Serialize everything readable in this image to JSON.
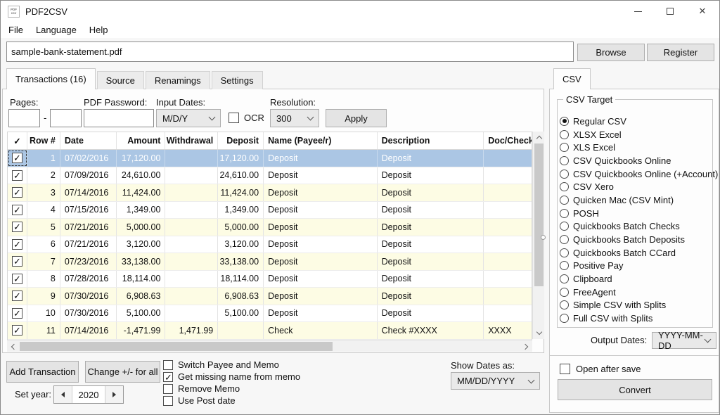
{
  "window": {
    "title": "PDF2CSV",
    "icon_top": "PDF",
    "icon_bottom": "csv"
  },
  "menu": {
    "items": [
      "File",
      "Language",
      "Help"
    ]
  },
  "file_bar": {
    "path": "sample-bank-statement.pdf",
    "browse_label": "Browse",
    "register_label": "Register"
  },
  "tabs": {
    "items": [
      "Transactions (16)",
      "Source",
      "Renamings",
      "Settings"
    ],
    "active": "Transactions (16)"
  },
  "toolbar": {
    "pages_label": "Pages:",
    "pages_from": "",
    "pages_separator": "-",
    "pages_to": "",
    "password_label": "PDF Password:",
    "password_value": "",
    "input_dates_label": "Input Dates:",
    "input_dates_value": "M/D/Y",
    "ocr_label": "OCR",
    "ocr_checked": false,
    "resolution_label": "Resolution:",
    "resolution_value": "300",
    "apply_label": "Apply"
  },
  "table": {
    "columns": [
      "✓",
      "Row #",
      "Date",
      "Amount",
      "Withdrawal",
      "Deposit",
      "Name (Payee/r)",
      "Description",
      "Doc/Check #"
    ],
    "rows": [
      {
        "checked": true,
        "selected": true,
        "row": "1",
        "date": "07/02/2016",
        "amount": "17,120.00",
        "withdrawal": "",
        "deposit": "17,120.00",
        "name": "Deposit",
        "description": "Deposit",
        "doc": ""
      },
      {
        "checked": true,
        "selected": false,
        "row": "2",
        "date": "07/09/2016",
        "amount": "24,610.00",
        "withdrawal": "",
        "deposit": "24,610.00",
        "name": "Deposit",
        "description": "Deposit",
        "doc": ""
      },
      {
        "checked": true,
        "selected": false,
        "row": "3",
        "date": "07/14/2016",
        "amount": "11,424.00",
        "withdrawal": "",
        "deposit": "11,424.00",
        "name": "Deposit",
        "description": "Deposit",
        "doc": ""
      },
      {
        "checked": true,
        "selected": false,
        "row": "4",
        "date": "07/15/2016",
        "amount": "1,349.00",
        "withdrawal": "",
        "deposit": "1,349.00",
        "name": "Deposit",
        "description": "Deposit",
        "doc": ""
      },
      {
        "checked": true,
        "selected": false,
        "row": "5",
        "date": "07/21/2016",
        "amount": "5,000.00",
        "withdrawal": "",
        "deposit": "5,000.00",
        "name": "Deposit",
        "description": "Deposit",
        "doc": ""
      },
      {
        "checked": true,
        "selected": false,
        "row": "6",
        "date": "07/21/2016",
        "amount": "3,120.00",
        "withdrawal": "",
        "deposit": "3,120.00",
        "name": "Deposit",
        "description": "Deposit",
        "doc": ""
      },
      {
        "checked": true,
        "selected": false,
        "row": "7",
        "date": "07/23/2016",
        "amount": "33,138.00",
        "withdrawal": "",
        "deposit": "33,138.00",
        "name": "Deposit",
        "description": "Deposit",
        "doc": ""
      },
      {
        "checked": true,
        "selected": false,
        "row": "8",
        "date": "07/28/2016",
        "amount": "18,114.00",
        "withdrawal": "",
        "deposit": "18,114.00",
        "name": "Deposit",
        "description": "Deposit",
        "doc": ""
      },
      {
        "checked": true,
        "selected": false,
        "row": "9",
        "date": "07/30/2016",
        "amount": "6,908.63",
        "withdrawal": "",
        "deposit": "6,908.63",
        "name": "Deposit",
        "description": "Deposit",
        "doc": ""
      },
      {
        "checked": true,
        "selected": false,
        "row": "10",
        "date": "07/30/2016",
        "amount": "5,100.00",
        "withdrawal": "",
        "deposit": "5,100.00",
        "name": "Deposit",
        "description": "Deposit",
        "doc": ""
      },
      {
        "checked": true,
        "selected": false,
        "row": "11",
        "date": "07/14/2016",
        "amount": "-1,471.99",
        "withdrawal": "1,471.99",
        "deposit": "",
        "name": "Check",
        "description": "Check #XXXX",
        "doc": "XXXX"
      }
    ]
  },
  "footer": {
    "add_transaction_label": "Add Transaction",
    "change_sign_label": "Change +/- for all",
    "set_year_label": "Set year:",
    "set_year_value": "2020",
    "checkboxes": [
      {
        "label": "Switch Payee and Memo",
        "checked": false
      },
      {
        "label": "Get missing name from memo",
        "checked": true
      },
      {
        "label": "Remove Memo",
        "checked": false
      },
      {
        "label": "Use Post date",
        "checked": false
      }
    ],
    "show_dates_label": "Show Dates as:",
    "show_dates_value": "MM/DD/YYYY"
  },
  "csv_panel": {
    "tab_label": "CSV",
    "group_title": "CSV Target",
    "targets": [
      "Regular CSV",
      "XLSX Excel",
      "XLS Excel",
      "CSV Quickbooks Online",
      "CSV Quickbooks Online (+Account)",
      "CSV Xero",
      "Quicken Mac (CSV Mint)",
      "POSH",
      "Quickbooks Batch Checks",
      "Quickbooks Batch Deposits",
      "Quickbooks Batch CCard",
      "Positive Pay",
      "Clipboard",
      "FreeAgent",
      "Simple CSV with Splits",
      "Full CSV with Splits"
    ],
    "selected_target": "Regular CSV",
    "output_dates_label": "Output Dates:",
    "output_dates_value": "YYYY-MM-DD",
    "open_after_save_label": "Open after save",
    "open_after_save_checked": false,
    "convert_label": "Convert"
  },
  "colors": {
    "selected_row": "#abc6e4",
    "stripe_row": "#fdfce4",
    "button_face": "#e4e4e4",
    "tab_page": "#fdfdfd"
  }
}
